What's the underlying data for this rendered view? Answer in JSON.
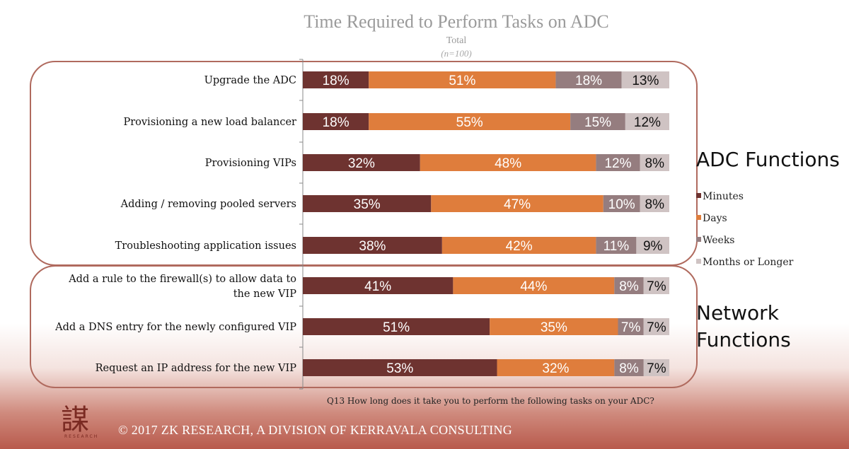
{
  "title": "Time Required to Perform Tasks on ADC",
  "subtitle": "Total",
  "sample_note": "(n=100)",
  "question": "Q13 How long does it take you to perform the following tasks on your ADC?",
  "footer": {
    "logo_text": "謀",
    "logo_sub": "RESEARCH",
    "copyright": "© 2017 ZK RESEARCH, A DIVISION OF KERRAVALA CONSULTING"
  },
  "groups": [
    {
      "label": "ADC Functions"
    },
    {
      "label": "Network Functions"
    }
  ],
  "colors": {
    "Minutes": "#6e3330",
    "Days": "#df7d3c",
    "Weeks": "#957d7f",
    "Months or Longer": "#cfc3c3",
    "group_border": "#b06a5e"
  },
  "chart_data": {
    "type": "bar",
    "orientation": "horizontal",
    "stacked": true,
    "title": "Time Required to Perform Tasks on ADC",
    "subtitle": "Total",
    "xlim": [
      0,
      100
    ],
    "legend_position": "right",
    "categories": [
      "Upgrade the ADC",
      "Provisioning a new load balancer",
      "Provisioning VIPs",
      "Adding / removing pooled servers",
      "Troubleshooting application issues",
      "Add a rule to the firewall(s) to allow data to the new VIP",
      "Add a DNS entry for the newly configured VIP",
      "Request an IP address for the new VIP"
    ],
    "series": [
      {
        "name": "Minutes",
        "values": [
          18,
          18,
          32,
          35,
          38,
          41,
          51,
          53
        ]
      },
      {
        "name": "Days",
        "values": [
          51,
          55,
          48,
          47,
          42,
          44,
          35,
          32
        ]
      },
      {
        "name": "Weeks",
        "values": [
          18,
          15,
          12,
          10,
          11,
          8,
          7,
          8
        ]
      },
      {
        "name": "Months or Longer",
        "values": [
          13,
          12,
          8,
          8,
          9,
          7,
          7,
          7
        ]
      }
    ]
  }
}
